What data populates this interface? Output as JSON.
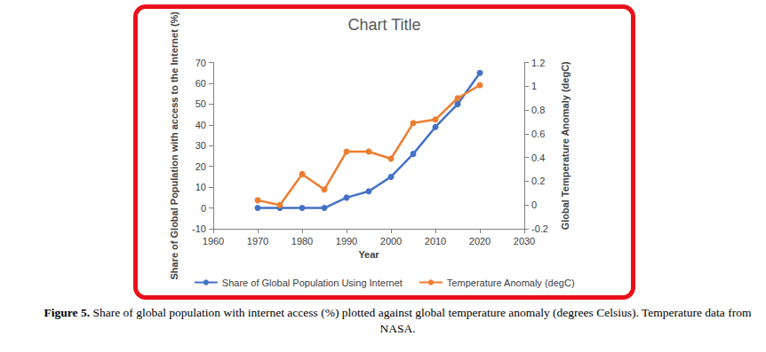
{
  "chart_data": {
    "type": "line",
    "title": "Chart Title",
    "xlabel": "Year",
    "ylabel": "Share of Global Population with access to the Internet (%)",
    "y2label": "Global Temperature Anomaly (degC)",
    "x": [
      1970,
      1975,
      1980,
      1985,
      1990,
      1995,
      2000,
      2005,
      2010,
      2015,
      2020
    ],
    "series": [
      {
        "name": "Share of Global Population Using Internet",
        "color": "#4472c4",
        "marker": "circle",
        "line_style": "solid",
        "values": [
          0,
          0,
          0,
          0,
          5,
          8,
          15,
          26,
          39,
          50,
          65
        ]
      },
      {
        "name": "Temperature Anomaly (degC)",
        "color": "#ed7d31",
        "marker": "circle",
        "line_style": "solid",
        "axis": "y2",
        "values": [
          0.04,
          0.0,
          0.26,
          0.13,
          0.45,
          0.45,
          0.39,
          0.69,
          0.72,
          0.9,
          1.01
        ]
      }
    ],
    "xlim": [
      1960,
      2030
    ],
    "xticks": [
      1960,
      1970,
      1980,
      1990,
      2000,
      2010,
      2020,
      2030
    ],
    "ylim": [
      -10,
      70
    ],
    "yticks": [
      -10,
      0,
      10,
      20,
      30,
      40,
      50,
      60,
      70
    ],
    "y2lim": [
      -0.2,
      1.2
    ],
    "y2ticks": [
      -0.2,
      0,
      0.2,
      0.4,
      0.6,
      0.8,
      1,
      1.2
    ],
    "grid": false,
    "legend": "bottom"
  },
  "caption": {
    "label": "Figure 5.",
    "text": "Share of global population with internet access (%) plotted against global temperature anomaly (degrees Celsius). Temperature data from NASA."
  }
}
